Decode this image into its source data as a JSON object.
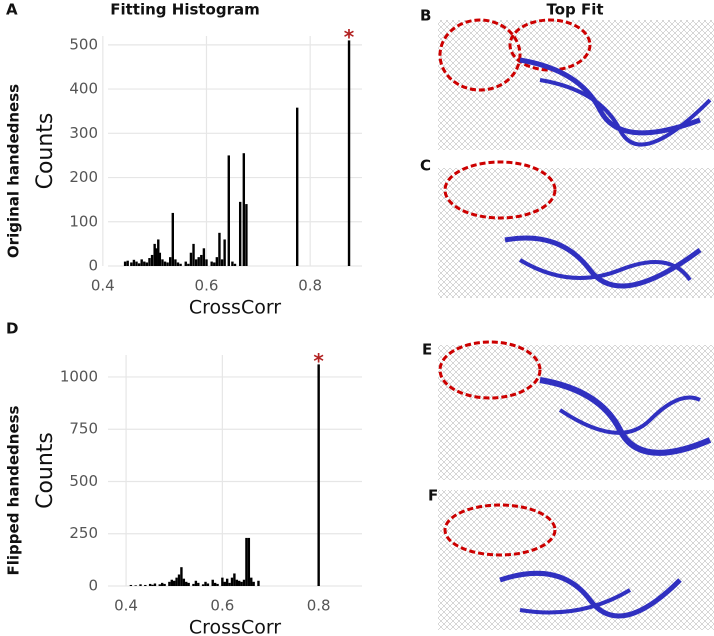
{
  "figure": {
    "right_title": "Top Fit",
    "image_panels": [
      "B",
      "C",
      "E",
      "F"
    ]
  },
  "chart_data": [
    {
      "type": "bar",
      "title": "Fitting Histogram",
      "label": "A",
      "row_label": "Original handedness",
      "x_label": "CrossCorr",
      "y_label": "Counts",
      "color": "#000000",
      "grid": true,
      "xlim": [
        0.41,
        0.9
      ],
      "ylim": [
        0,
        520
      ],
      "xticks": [
        0.4,
        0.6,
        0.8
      ],
      "yticks": [
        0,
        100,
        200,
        300,
        400,
        500
      ],
      "x": [
        0.443,
        0.448,
        0.455,
        0.46,
        0.465,
        0.47,
        0.475,
        0.48,
        0.485,
        0.49,
        0.495,
        0.5,
        0.503,
        0.507,
        0.51,
        0.515,
        0.52,
        0.525,
        0.53,
        0.535,
        0.54,
        0.545,
        0.55,
        0.56,
        0.565,
        0.57,
        0.575,
        0.58,
        0.585,
        0.59,
        0.595,
        0.6,
        0.61,
        0.615,
        0.62,
        0.625,
        0.63,
        0.635,
        0.643,
        0.65,
        0.655,
        0.665,
        0.672,
        0.677,
        0.775,
        0.875
      ],
      "values": [
        10,
        12,
        8,
        14,
        10,
        6,
        15,
        10,
        8,
        18,
        25,
        50,
        40,
        60,
        30,
        15,
        10,
        8,
        20,
        120,
        15,
        8,
        5,
        10,
        5,
        30,
        50,
        15,
        20,
        25,
        40,
        15,
        10,
        8,
        20,
        75,
        15,
        60,
        250,
        10,
        5,
        145,
        255,
        140,
        358,
        510
      ],
      "annotations": [
        {
          "text": "*",
          "x": 0.875,
          "y": 510,
          "color": "#b22222"
        }
      ]
    },
    {
      "type": "bar",
      "label": "D",
      "row_label": "Flipped handedness",
      "x_label": "CrossCorr",
      "y_label": "Counts",
      "color": "#000000",
      "grid": true,
      "xlim": [
        0.3625,
        0.89
      ],
      "ylim": [
        0,
        1105
      ],
      "xticks": [
        0.4,
        0.6,
        0.8
      ],
      "yticks": [
        0,
        250,
        500,
        750,
        1000
      ],
      "x": [
        0.41,
        0.42,
        0.43,
        0.44,
        0.45,
        0.455,
        0.46,
        0.47,
        0.475,
        0.48,
        0.49,
        0.495,
        0.5,
        0.505,
        0.51,
        0.515,
        0.52,
        0.525,
        0.53,
        0.54,
        0.545,
        0.55,
        0.56,
        0.565,
        0.57,
        0.58,
        0.585,
        0.59,
        0.6,
        0.605,
        0.61,
        0.615,
        0.62,
        0.625,
        0.63,
        0.635,
        0.64,
        0.645,
        0.65,
        0.655,
        0.66,
        0.665,
        0.675,
        0.8
      ],
      "values": [
        5,
        3,
        8,
        5,
        10,
        6,
        12,
        8,
        15,
        10,
        20,
        30,
        25,
        40,
        55,
        90,
        35,
        20,
        15,
        10,
        25,
        15,
        8,
        20,
        12,
        30,
        15,
        10,
        40,
        20,
        35,
        15,
        40,
        60,
        30,
        25,
        20,
        30,
        230,
        230,
        40,
        20,
        25,
        1060
      ],
      "annotations": [
        {
          "text": "*",
          "x": 0.8,
          "y": 1060,
          "color": "#b22222"
        }
      ]
    }
  ]
}
